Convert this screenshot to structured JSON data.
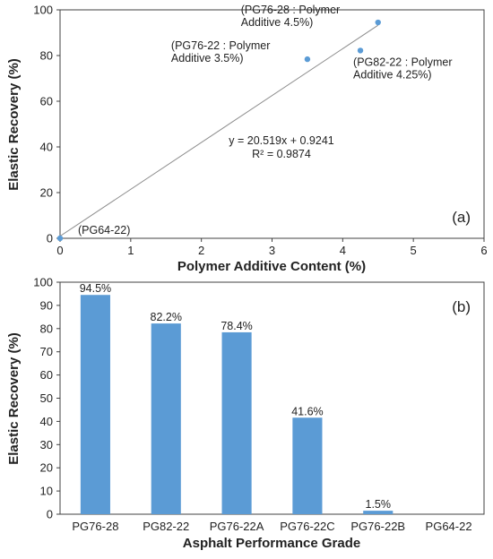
{
  "chart_data": [
    {
      "type": "scatter",
      "panel_label": "(a)",
      "xlabel": "Polymer Additive Content (%)",
      "ylabel": "Elastic Recovery (%)",
      "xlim": [
        0,
        6
      ],
      "ylim": [
        0,
        100
      ],
      "xticks": [
        0,
        1,
        2,
        3,
        4,
        5,
        6
      ],
      "yticks": [
        0,
        20,
        40,
        60,
        80,
        100
      ],
      "grid": false,
      "marker_color": "#5b9bd5",
      "points": [
        {
          "x": 0,
          "y": 0,
          "label_lines": [
            "(PG64-22)"
          ]
        },
        {
          "x": 3.5,
          "y": 78.4,
          "label_lines": [
            "(PG76-22 : Polymer",
            "Additive 3.5%)"
          ]
        },
        {
          "x": 4.25,
          "y": 82.2,
          "label_lines": [
            "(PG82-22 : Polymer",
            "Additive 4.25%)"
          ]
        },
        {
          "x": 4.5,
          "y": 94.5,
          "label_lines": [
            "(PG76-28 : Polymer",
            "Additive 4.5%)"
          ]
        }
      ],
      "trendline": {
        "slope": 20.519,
        "intercept": 0.9241,
        "x_range": [
          0,
          4.5
        ],
        "color": "#8c8c8c"
      },
      "equation_text": "y = 20.519x + 0.9241",
      "r2_text": "R² = 0.9874"
    },
    {
      "type": "bar",
      "panel_label": "(b)",
      "xlabel": "Asphalt Performance Grade",
      "ylabel": "Elastic Recovery (%)",
      "ylim": [
        0,
        100
      ],
      "yticks": [
        0,
        10,
        20,
        30,
        40,
        50,
        60,
        70,
        80,
        90,
        100
      ],
      "grid": false,
      "bar_color": "#5b9bd5",
      "categories": [
        "PG76-28",
        "PG82-22",
        "PG76-22A",
        "PG76-22C",
        "PG76-22B",
        "PG64-22"
      ],
      "values": [
        94.5,
        82.2,
        78.4,
        41.6,
        1.5,
        0
      ],
      "data_labels": [
        "94.5%",
        "82.2%",
        "78.4%",
        "41.6%",
        "1.5%",
        ""
      ]
    }
  ]
}
